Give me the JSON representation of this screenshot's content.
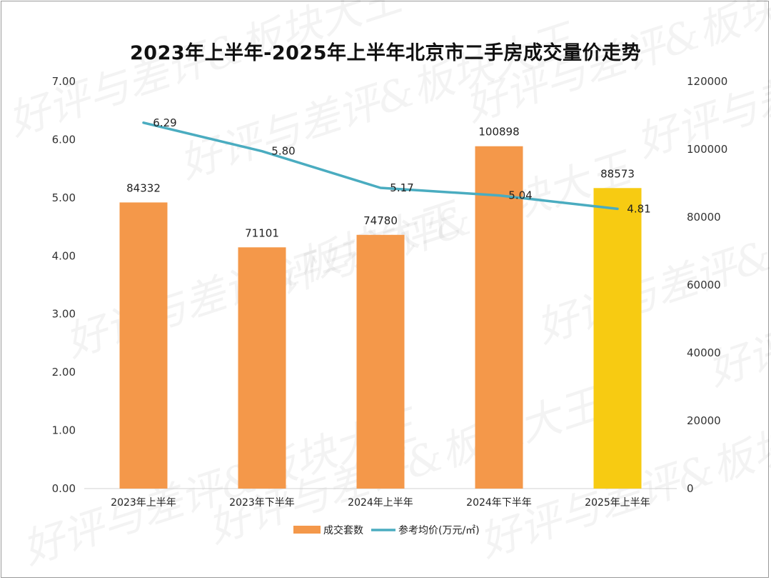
{
  "chart_data": {
    "type": "bar",
    "title": "2023年上半年-2025年上半年北京市二手房成交量价走势",
    "categories": [
      "2023年上半年",
      "2023年下半年",
      "2024年上半年",
      "2024年下半年",
      "2025年上半年"
    ],
    "series": [
      {
        "name": "成交套数",
        "type": "bar",
        "axis": "right",
        "values": [
          84332,
          71101,
          74780,
          100898,
          88573
        ],
        "color": "#F4984A",
        "highlight_color": "#F7CB12",
        "highlight_index": 4
      },
      {
        "name": "参考均价(万元/㎡)",
        "type": "line",
        "axis": "left",
        "values": [
          6.29,
          5.8,
          5.17,
          5.04,
          4.81
        ],
        "color": "#4AACC0"
      }
    ],
    "y_left": {
      "lim": [
        0,
        7
      ],
      "ticks": [
        "0.00",
        "1.00",
        "2.00",
        "3.00",
        "4.00",
        "5.00",
        "6.00",
        "7.00"
      ]
    },
    "y_right": {
      "lim": [
        0,
        120000
      ],
      "ticks": [
        "0",
        "20000",
        "40000",
        "60000",
        "80000",
        "100000",
        "120000"
      ]
    },
    "legend_position": "bottom",
    "grid": false
  },
  "watermark": "好评与差评&板块大王"
}
